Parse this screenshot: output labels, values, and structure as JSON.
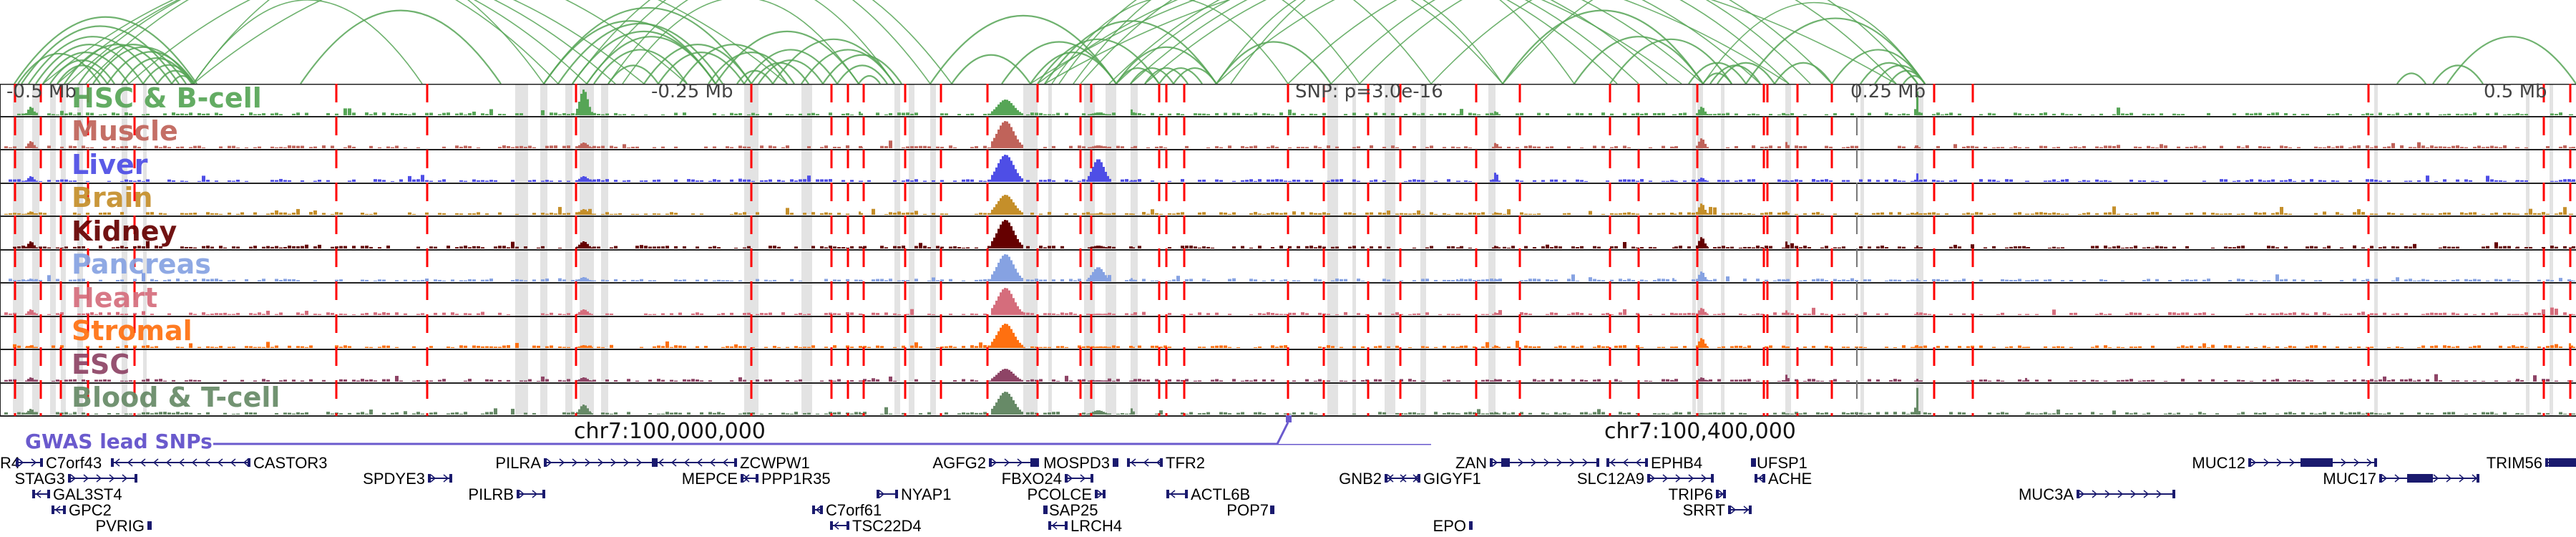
{
  "colors": {
    "arc": "#56a556",
    "snp_line": "#ff0000",
    "highlight": "#e3e3e3",
    "gwas": "#6a5acd",
    "gene": "#1a1a6e",
    "axis_text": "#444444"
  },
  "axis": {
    "labels": [
      {
        "text": "-0.5 Mb",
        "pos": -0.5
      },
      {
        "text": "-0.25 Mb",
        "pos": -0.25
      },
      {
        "text": "0.25 Mb",
        "pos": 0.25
      },
      {
        "text": "0.5 Mb",
        "pos": 0.5
      }
    ],
    "snp_label": "SNP: p=3.0e-16"
  },
  "tracks": [
    {
      "name": "HSC & B-cell",
      "color": "#56a556"
    },
    {
      "name": "Muscle",
      "color": "#c0635a"
    },
    {
      "name": "Liver",
      "color": "#4e4ee6"
    },
    {
      "name": "Brain",
      "color": "#c58f2a"
    },
    {
      "name": "Kidney",
      "color": "#650000"
    },
    {
      "name": "Pancreas",
      "color": "#86a2e2"
    },
    {
      "name": "Heart",
      "color": "#d56d7c"
    },
    {
      "name": "Stromal",
      "color": "#ff7010"
    },
    {
      "name": "ESC",
      "color": "#8e4466"
    },
    {
      "name": "Blood & T-cell",
      "color": "#678a67"
    }
  ],
  "coordinates": [
    {
      "text": "chr7:100,000,000"
    },
    {
      "text": "chr7:100,400,000"
    }
  ],
  "gwas": {
    "label": "GWAS lead SNPs"
  },
  "genes": [
    {
      "name": "R4",
      "row": 0,
      "strand": "+"
    },
    {
      "name": "C7orf43",
      "row": 0,
      "strand": "+"
    },
    {
      "name": "CASTOR3",
      "row": 0,
      "strand": "-"
    },
    {
      "name": "STAG3",
      "row": 1,
      "strand": "+"
    },
    {
      "name": "SPDYE3",
      "row": 1,
      "strand": "+"
    },
    {
      "name": "GAL3ST4",
      "row": 2,
      "strand": "-"
    },
    {
      "name": "GPC2",
      "row": 3,
      "strand": "-"
    },
    {
      "name": "PVRIG",
      "row": 4,
      "strand": "+"
    },
    {
      "name": "PILRA",
      "row": 0,
      "strand": "+"
    },
    {
      "name": "ZCWPW1",
      "row": 0,
      "strand": "-"
    },
    {
      "name": "MEPCE",
      "row": 1,
      "strand": "+"
    },
    {
      "name": "PPP1R35",
      "row": 1,
      "strand": "-"
    },
    {
      "name": "PILRB",
      "row": 2,
      "strand": "+"
    },
    {
      "name": "NYAP1",
      "row": 2,
      "strand": "+"
    },
    {
      "name": "C7orf61",
      "row": 3,
      "strand": "-"
    },
    {
      "name": "TSC22D4",
      "row": 4,
      "strand": "-"
    },
    {
      "name": "AGFG2",
      "row": 0,
      "strand": "+"
    },
    {
      "name": "MOSPD3",
      "row": 0,
      "strand": "+"
    },
    {
      "name": "TFR2",
      "row": 0,
      "strand": "-"
    },
    {
      "name": "FBXO24",
      "row": 1,
      "strand": "+"
    },
    {
      "name": "PCOLCE",
      "row": 2,
      "strand": "+"
    },
    {
      "name": "SAP25",
      "row": 3,
      "strand": "-"
    },
    {
      "name": "LRCH4",
      "row": 4,
      "strand": "-"
    },
    {
      "name": "GNB2",
      "row": 1,
      "strand": "+"
    },
    {
      "name": "GIGYF1",
      "row": 1,
      "strand": "-"
    },
    {
      "name": "ACTL6B",
      "row": 2,
      "strand": "-"
    },
    {
      "name": "POP7",
      "row": 3,
      "strand": "+"
    },
    {
      "name": "EPO",
      "row": 4,
      "strand": "+"
    },
    {
      "name": "ZAN",
      "row": 0,
      "strand": "+"
    },
    {
      "name": "EPHB4",
      "row": 0,
      "strand": "-"
    },
    {
      "name": "SLC12A9",
      "row": 1,
      "strand": "+"
    },
    {
      "name": "TRIP6",
      "row": 2,
      "strand": "+"
    },
    {
      "name": "SRRT",
      "row": 3,
      "strand": "+"
    },
    {
      "name": "UFSP1",
      "row": 0,
      "strand": "-"
    },
    {
      "name": "ACHE",
      "row": 1,
      "strand": "-"
    },
    {
      "name": "MUC3A",
      "row": 2,
      "strand": "+"
    },
    {
      "name": "MUC12",
      "row": 0,
      "strand": "+"
    },
    {
      "name": "MUC17",
      "row": 1,
      "strand": "+"
    },
    {
      "name": "TRIM56",
      "row": 0,
      "strand": "+"
    }
  ]
}
